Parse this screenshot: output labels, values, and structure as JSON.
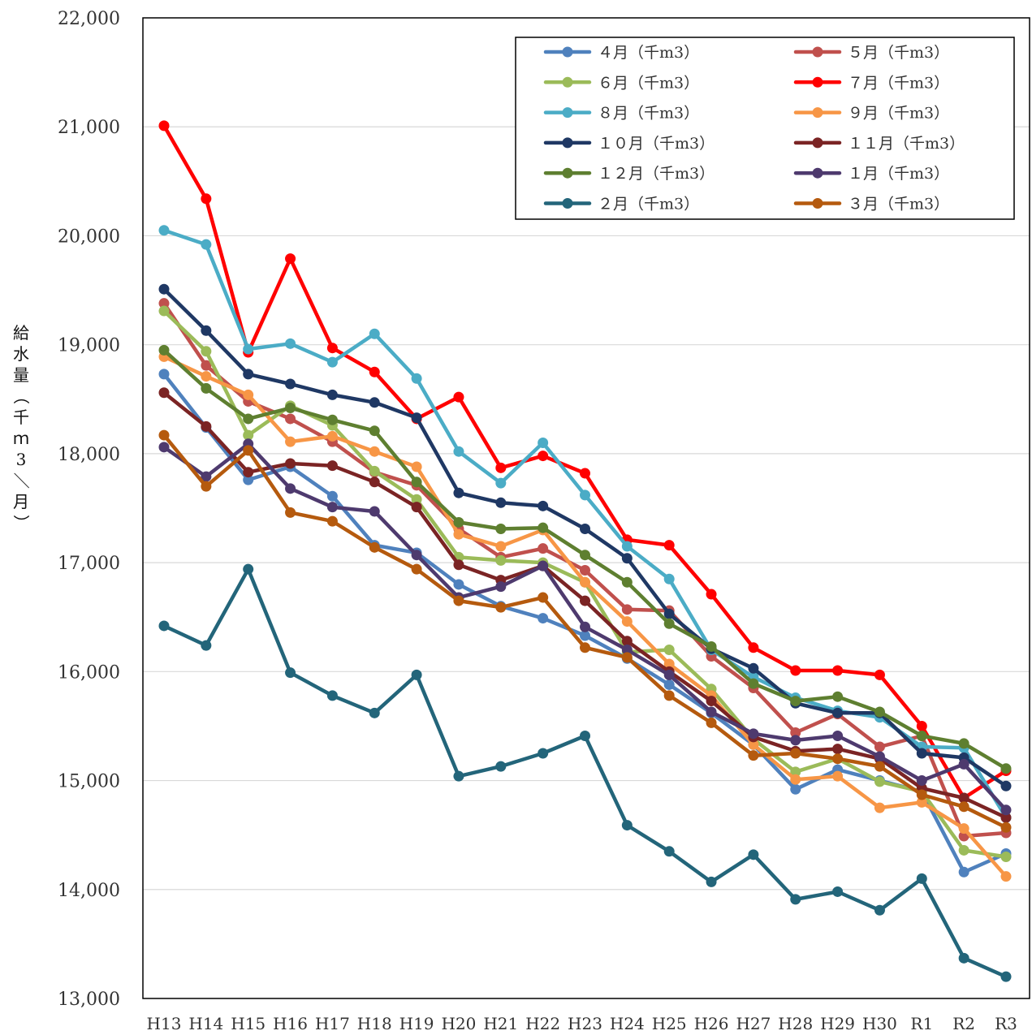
{
  "chart_data": {
    "type": "line",
    "ylabel": "給水量（千ｍ3／月）",
    "ylim": [
      13000,
      22000
    ],
    "yticks": [
      13000,
      14000,
      15000,
      16000,
      17000,
      18000,
      19000,
      20000,
      21000,
      22000
    ],
    "ytick_labels": [
      "13,000",
      "14,000",
      "15,000",
      "16,000",
      "17,000",
      "18,000",
      "19,000",
      "20,000",
      "21,000",
      "22,000"
    ],
    "grid": true,
    "legend_position": "top-right",
    "categories": [
      "H13",
      "H14",
      "H15",
      "H16",
      "H17",
      "H18",
      "H19",
      "H20",
      "H21",
      "H22",
      "H23",
      "H24",
      "H25",
      "H26",
      "H27",
      "H28",
      "H29",
      "H30",
      "R1",
      "R2",
      "R3"
    ],
    "series": [
      {
        "name": "４月（千m3）",
        "color": "#4f81bd",
        "values": [
          18730,
          18240,
          17760,
          17880,
          17610,
          17160,
          17090,
          16800,
          16600,
          16490,
          16330,
          16120,
          15880,
          15620,
          15330,
          14920,
          15100,
          15000,
          14900,
          14160,
          14330
        ]
      },
      {
        "name": "５月（千m3）",
        "color": "#c0504d",
        "values": [
          19380,
          18810,
          18480,
          18320,
          18110,
          17830,
          17710,
          17310,
          17050,
          17130,
          16930,
          16570,
          16560,
          16140,
          15850,
          15440,
          15610,
          15310,
          15410,
          14490,
          14520
        ]
      },
      {
        "name": "６月（千m3）",
        "color": "#9bbb59",
        "values": [
          19310,
          18940,
          18170,
          18440,
          18260,
          17840,
          17580,
          17050,
          17020,
          17000,
          16820,
          16180,
          16200,
          15840,
          15380,
          15080,
          15200,
          14990,
          14900,
          14360,
          14300
        ]
      },
      {
        "name": "７月（千m3）",
        "color": "#ff0000",
        "values": [
          21010,
          20340,
          18930,
          19790,
          18970,
          18750,
          18320,
          18520,
          17870,
          17980,
          17820,
          17210,
          17160,
          16710,
          16220,
          16010,
          16010,
          15970,
          15500,
          14840,
          15090
        ]
      },
      {
        "name": "８月（千m3）",
        "color": "#4bacc6",
        "values": [
          20050,
          19920,
          18960,
          19010,
          18840,
          19100,
          18690,
          18020,
          17730,
          18100,
          17620,
          17150,
          16850,
          16200,
          15950,
          15760,
          15640,
          15580,
          15310,
          15300,
          14660
        ]
      },
      {
        "name": "９月（千m3）",
        "color": "#f79646",
        "values": [
          18890,
          18710,
          18540,
          18110,
          18160,
          18020,
          17880,
          17260,
          17150,
          17300,
          16820,
          16460,
          16070,
          15780,
          15330,
          15010,
          15040,
          14750,
          14800,
          14560,
          14120
        ]
      },
      {
        "name": "１０月（千m3）",
        "color": "#1f3864",
        "values": [
          19510,
          19130,
          18730,
          18640,
          18540,
          18470,
          18330,
          17640,
          17550,
          17520,
          17310,
          17040,
          16530,
          16210,
          16030,
          15710,
          15620,
          15620,
          15250,
          15210,
          14950
        ]
      },
      {
        "name": "１１月（千m3）",
        "color": "#7b2424",
        "values": [
          18560,
          18250,
          17830,
          17910,
          17890,
          17740,
          17510,
          16980,
          16840,
          16970,
          16650,
          16280,
          16000,
          15730,
          15400,
          15270,
          15290,
          15200,
          14930,
          14840,
          14660
        ]
      },
      {
        "name": "１２月（千m3）",
        "color": "#5e7f30",
        "values": [
          18950,
          18600,
          18320,
          18420,
          18310,
          18210,
          17740,
          17370,
          17310,
          17320,
          17070,
          16820,
          16440,
          16230,
          15890,
          15730,
          15770,
          15630,
          15410,
          15340,
          15110
        ]
      },
      {
        "name": "１月（千m3）",
        "color": "#4e3a6e",
        "values": [
          18060,
          17790,
          18090,
          17680,
          17510,
          17470,
          17070,
          16680,
          16780,
          16970,
          16410,
          16200,
          15970,
          15630,
          15430,
          15370,
          15410,
          15220,
          15000,
          15150,
          14730
        ]
      },
      {
        "name": "２月（千m3）",
        "color": "#23657a",
        "values": [
          16420,
          16240,
          16940,
          15990,
          15780,
          15620,
          15970,
          15040,
          15130,
          15250,
          15410,
          14590,
          14350,
          14070,
          14320,
          13910,
          13980,
          13810,
          14100,
          13370,
          13200
        ]
      },
      {
        "name": "３月（千m3）",
        "color": "#b55a0e",
        "values": [
          18170,
          17700,
          18030,
          17460,
          17380,
          17140,
          16940,
          16650,
          16590,
          16680,
          16220,
          16130,
          15780,
          15530,
          15230,
          15250,
          15200,
          15130,
          14870,
          14760,
          14570
        ]
      }
    ]
  }
}
